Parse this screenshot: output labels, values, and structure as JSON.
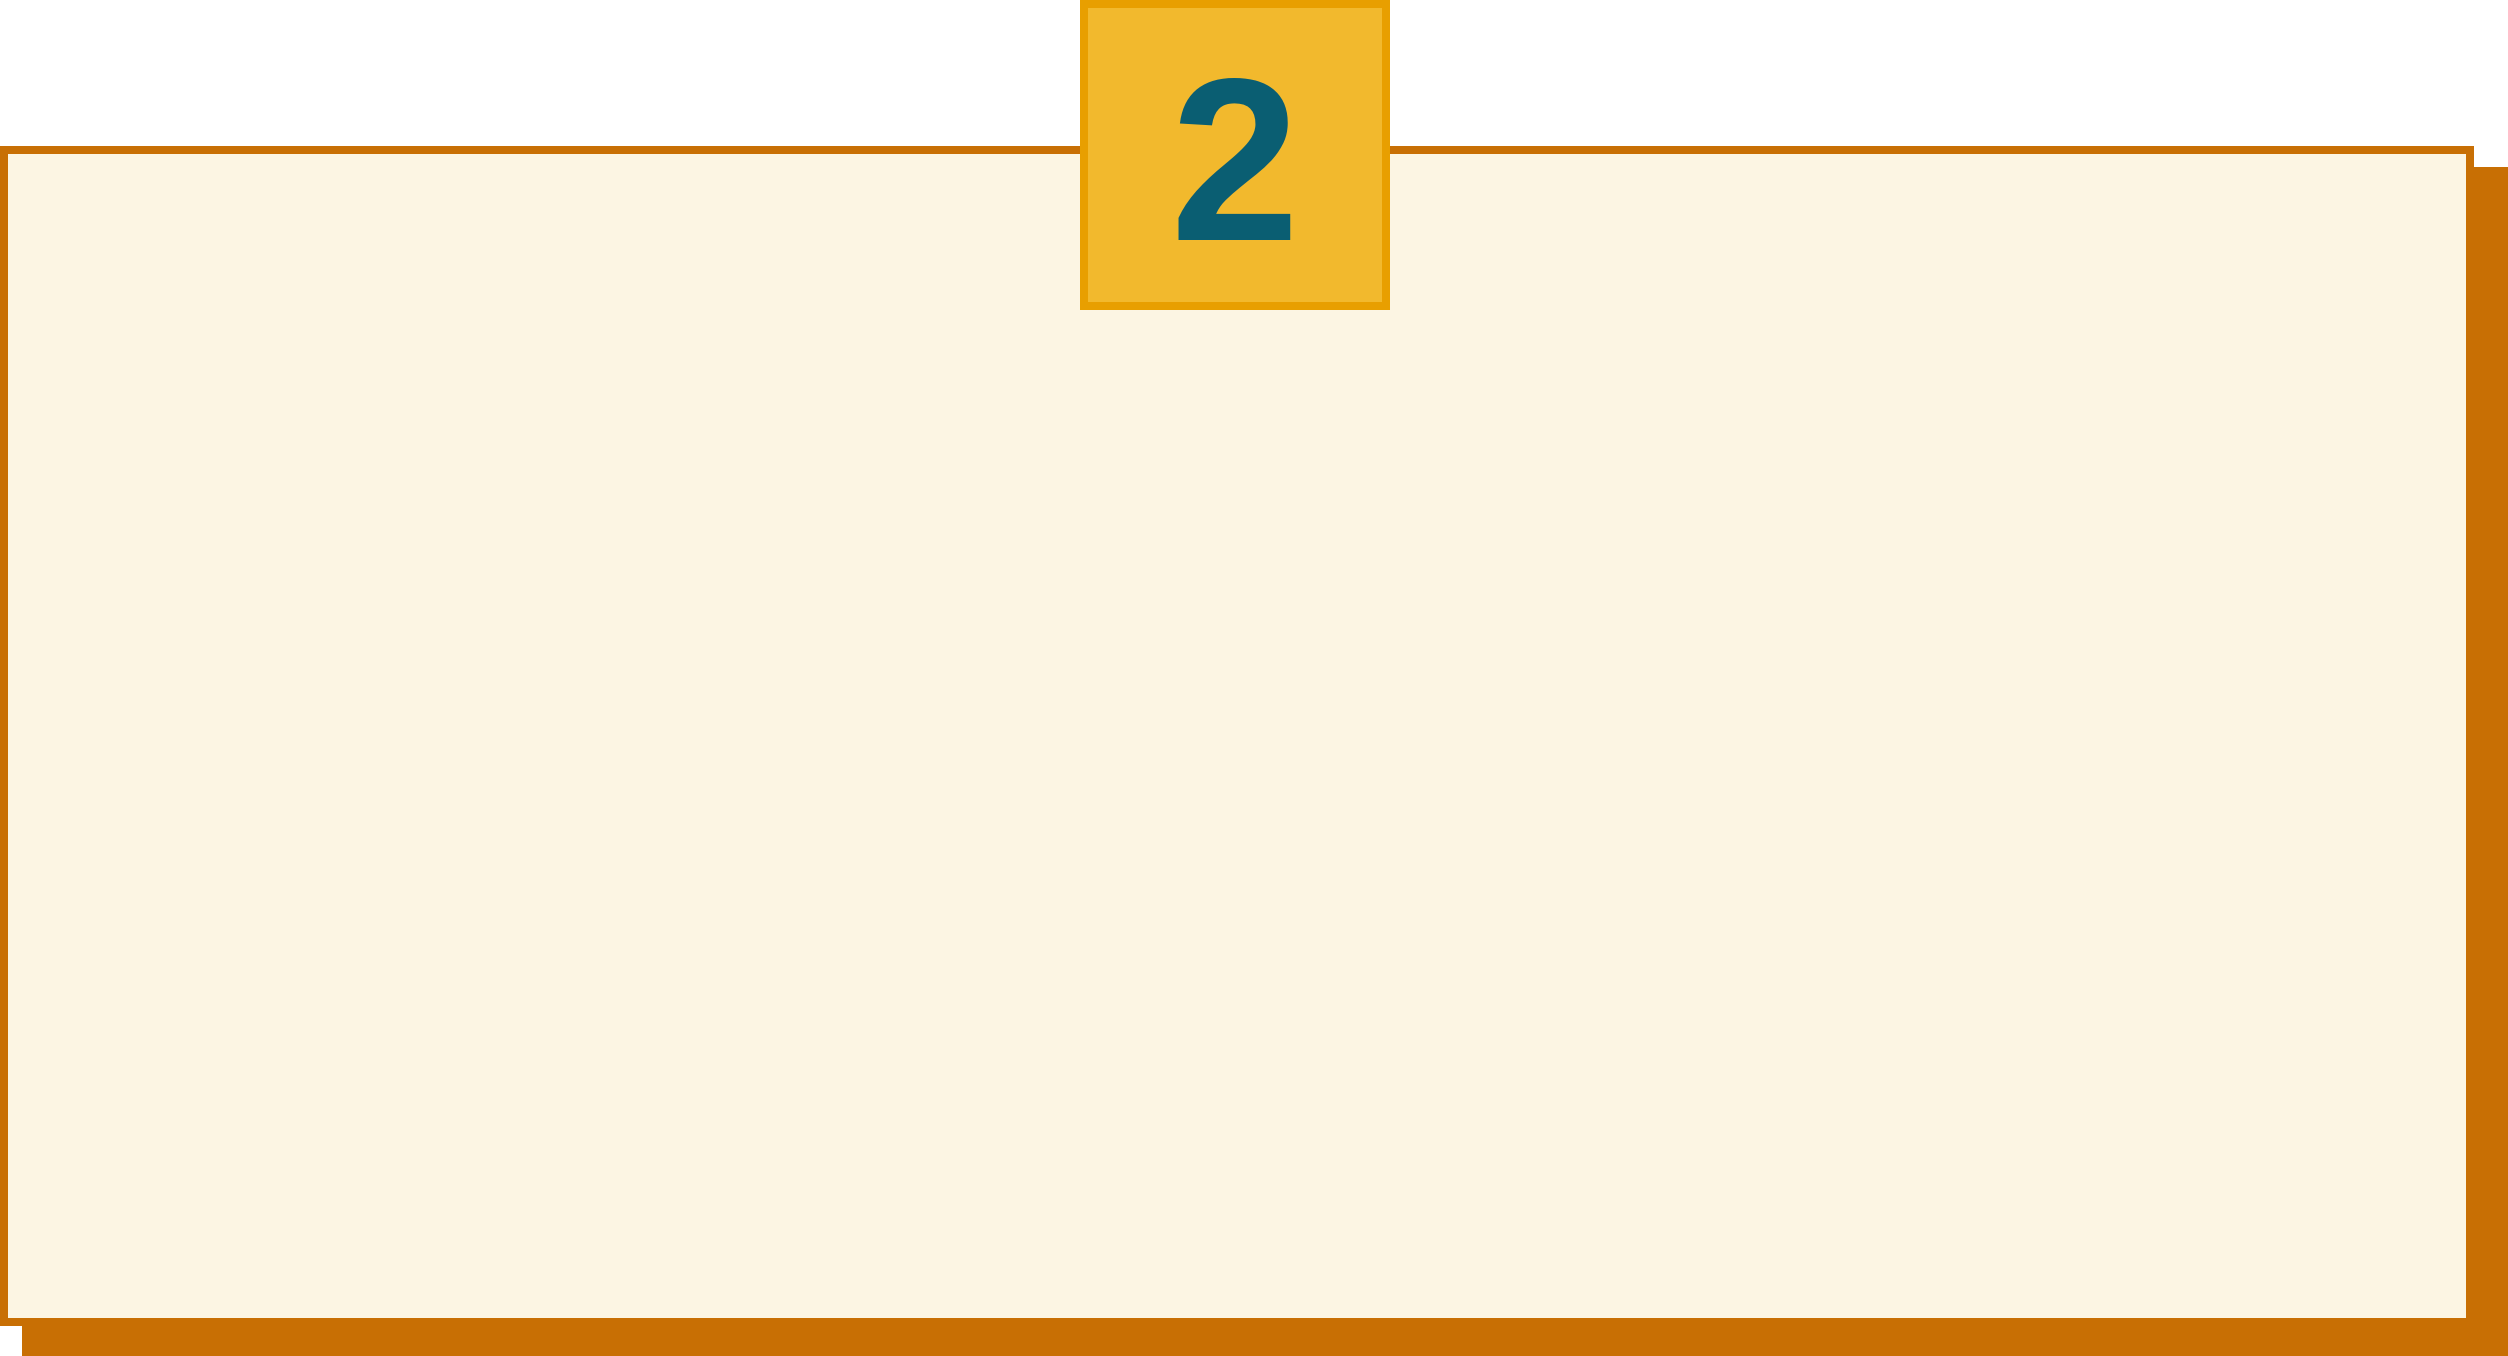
{
  "badge": {
    "number": "2"
  },
  "colors": {
    "panel_fill": "#fcf5e3",
    "panel_border": "#c86f04",
    "panel_shadow": "#c86f04",
    "badge_fill": "#f2b92d",
    "badge_border": "#e89f00",
    "number_color": "#0a5e72"
  }
}
